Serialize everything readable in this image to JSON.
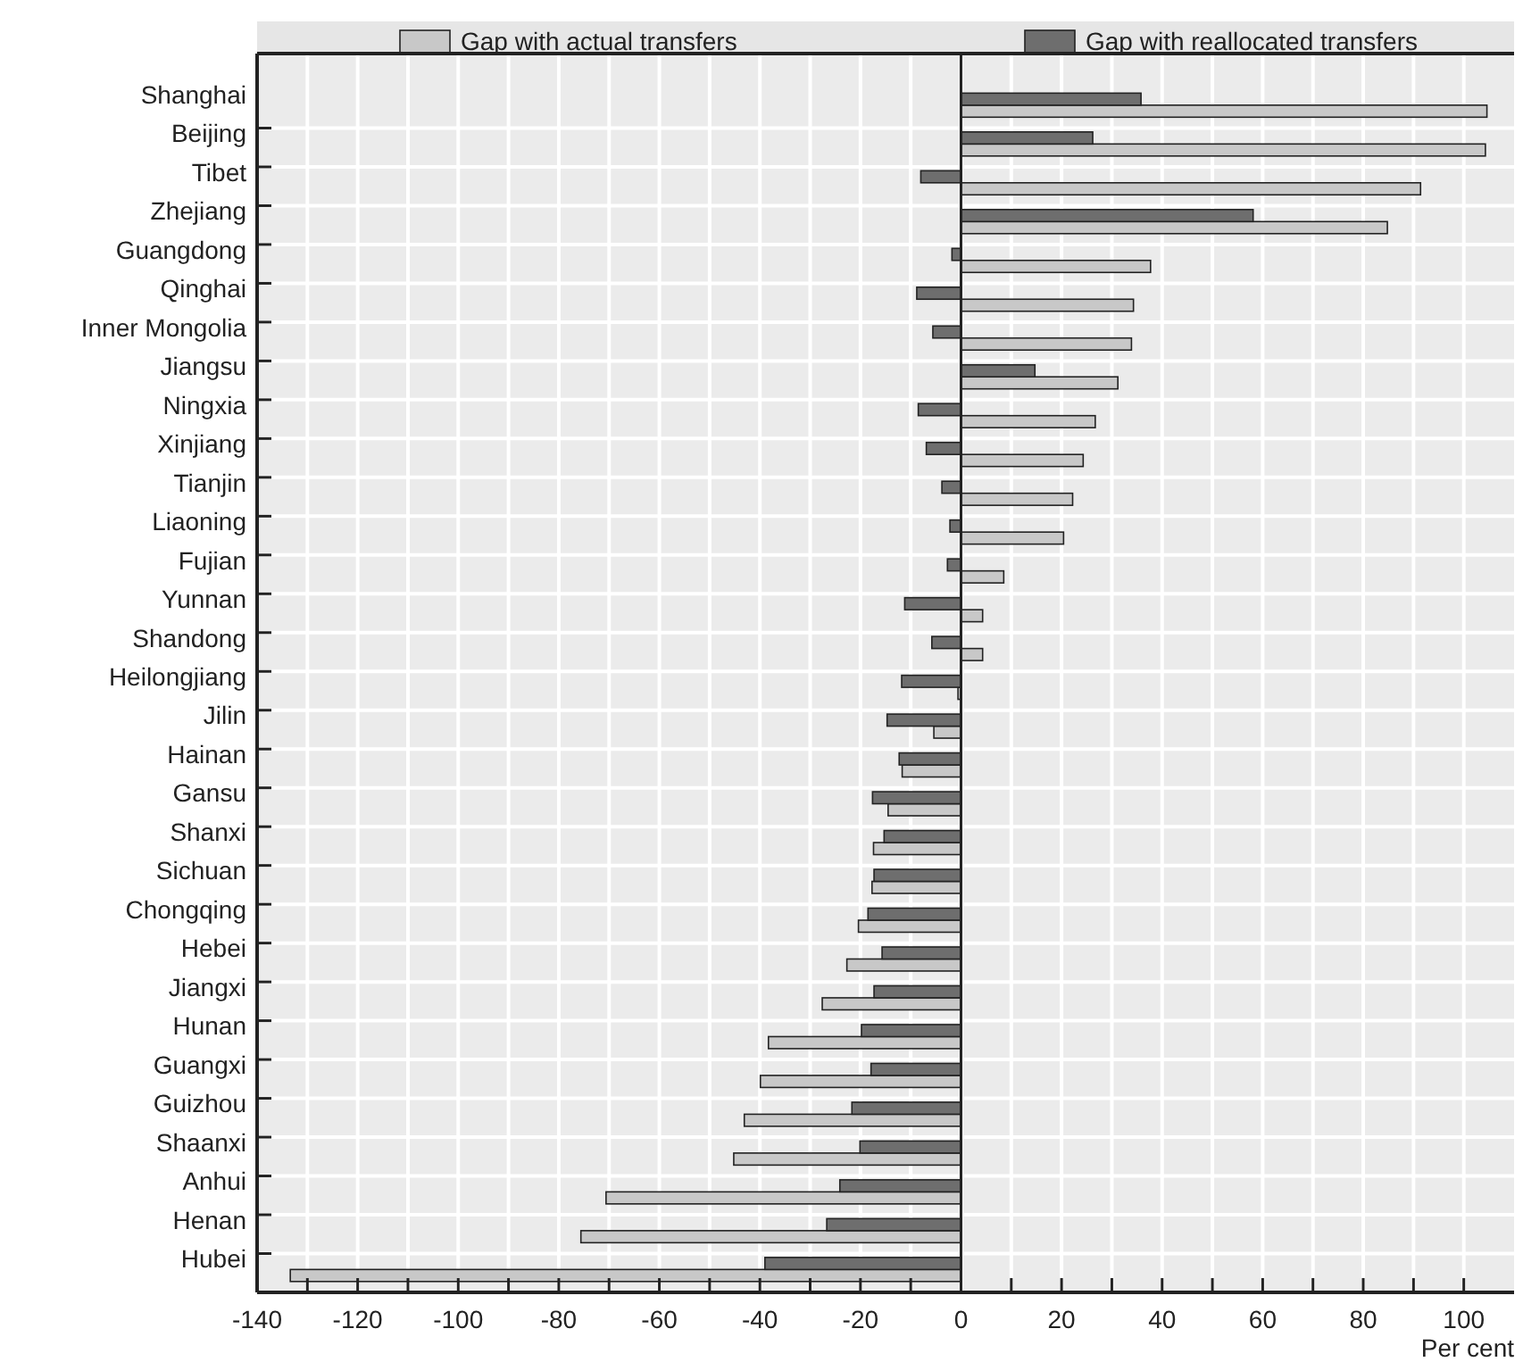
{
  "chart_data": {
    "type": "bar",
    "orientation": "horizontal",
    "xlabel": "Per cent",
    "categories": [
      "Shanghai",
      "Beijing",
      "Tibet",
      "Zhejiang",
      "Guangdong",
      "Qinghai",
      "Inner Mongolia",
      "Jiangsu",
      "Ningxia",
      "Xinjiang",
      "Tianjin",
      "Liaoning",
      "Fujian",
      "Yunnan",
      "Shandong",
      "Heilongjiang",
      "Jilin",
      "Hainan",
      "Gansu",
      "Shanxi",
      "Sichuan",
      "Chongqing",
      "Hebei",
      "Jiangxi",
      "Hunan",
      "Guangxi",
      "Guizhou",
      "Shaanxi",
      "Anhui",
      "Henan",
      "Hubei"
    ],
    "series": [
      {
        "name": "Gap with actual transfers",
        "color": "#c8c8c8",
        "values": [
          104.6,
          104.3,
          91.4,
          84.8,
          37.7,
          34.3,
          33.9,
          31.2,
          26.7,
          24.3,
          22.2,
          20.4,
          8.5,
          4.3,
          4.3,
          -0.6,
          -5.4,
          -11.7,
          -14.5,
          -17.4,
          -17.7,
          -20.4,
          -22.7,
          -27.6,
          -38.3,
          -39.9,
          -43.1,
          -45.2,
          -70.6,
          -75.6,
          -133.4
        ]
      },
      {
        "name": "Gap with reallocated transfers",
        "color": "#6e6e6e",
        "values": [
          35.8,
          26.2,
          -8,
          58.1,
          -1.8,
          -8.8,
          -5.6,
          14.7,
          -8.5,
          -6.9,
          -3.8,
          -2.2,
          -2.7,
          -11.2,
          -5.8,
          -11.8,
          -14.7,
          -12.3,
          -17.6,
          -15.3,
          -17.3,
          -18.5,
          -15.7,
          -17.3,
          -19.8,
          -17.9,
          -21.7,
          -20.1,
          -24.1,
          -26.7,
          -39
        ]
      }
    ],
    "xlim": [
      -140,
      110
    ],
    "xticks": [
      -140,
      {
        "value": -130,
        "label": null
      },
      -120,
      {
        "value": -110,
        "label": null
      },
      -100,
      {
        "value": -90,
        "label": null
      },
      -80,
      {
        "value": -70,
        "label": null
      },
      -60,
      {
        "value": -50,
        "label": null
      },
      -40,
      {
        "value": -30,
        "label": null
      },
      -20,
      {
        "value": -10,
        "label": null
      },
      0,
      {
        "value": 10,
        "label": null
      },
      20,
      {
        "value": 30,
        "label": null
      },
      40,
      {
        "value": 50,
        "label": null
      },
      60,
      {
        "value": 70,
        "label": null
      },
      80,
      {
        "value": 90,
        "label": null
      },
      100
    ],
    "grid": true,
    "legend": "top"
  }
}
